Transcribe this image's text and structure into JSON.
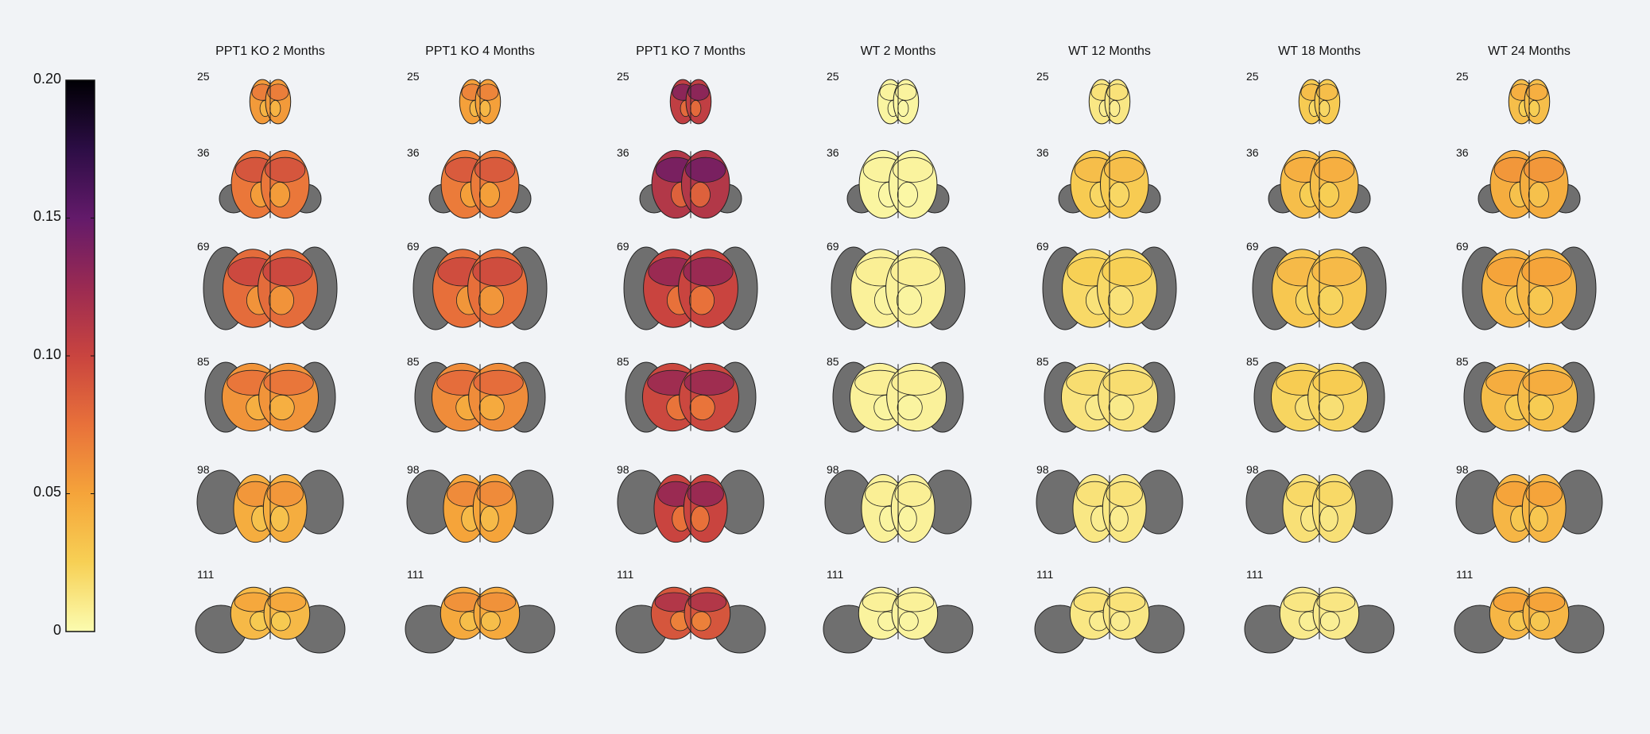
{
  "colorbar": {
    "ticks": [
      "0.20",
      "0.15",
      "0.10",
      "0.05",
      "0"
    ],
    "tick_values": [
      0.2,
      0.15,
      0.1,
      0.05,
      0
    ],
    "range": [
      0,
      0.2
    ],
    "colormap": "inferno-reversed",
    "stops": [
      "#fbfcb0",
      "#f7d055",
      "#f5a43a",
      "#e8713a",
      "#c9443f",
      "#9a2a52",
      "#631a6a",
      "#2c0d45",
      "#000004"
    ]
  },
  "columns": [
    {
      "title": "PPT1 KO 2 Months",
      "levels": [
        0.055,
        0.072,
        0.078,
        0.058,
        0.045,
        0.038
      ]
    },
    {
      "title": "PPT1 KO 4 Months",
      "levels": [
        0.052,
        0.07,
        0.076,
        0.062,
        0.05,
        0.047
      ]
    },
    {
      "title": "PPT1 KO 7 Months",
      "levels": [
        0.105,
        0.112,
        0.1,
        0.098,
        0.1,
        0.09
      ]
    },
    {
      "title": "WT 2 Months",
      "levels": [
        0.004,
        0.004,
        0.006,
        0.006,
        0.006,
        0.005
      ]
    },
    {
      "title": "WT 12 Months",
      "levels": [
        0.012,
        0.028,
        0.02,
        0.014,
        0.012,
        0.012
      ]
    },
    {
      "title": "WT 18 Months",
      "levels": [
        0.028,
        0.035,
        0.03,
        0.022,
        0.016,
        0.01
      ]
    },
    {
      "title": "WT 24 Months",
      "levels": [
        0.035,
        0.045,
        0.04,
        0.036,
        0.04,
        0.04
      ]
    }
  ],
  "slices": [
    "25",
    "36",
    "69",
    "85",
    "98",
    "111"
  ],
  "grey_region_color": "#6f6f6f"
}
